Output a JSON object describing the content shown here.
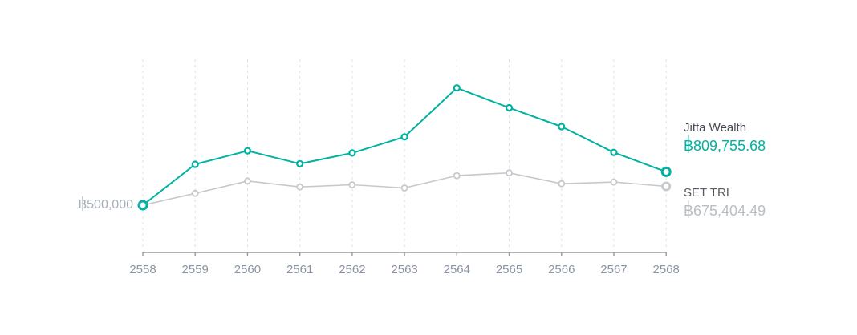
{
  "chart_data": {
    "type": "line",
    "x_labels": [
      "2558",
      "2559",
      "2560",
      "2561",
      "2562",
      "2563",
      "2564",
      "2565",
      "2566",
      "2567",
      "2568"
    ],
    "series": [
      {
        "key": "jitta-wealth",
        "name": "Jitta Wealth",
        "color": "#00b2a1",
        "values": [
          500000,
          880000,
          1005000,
          885000,
          985000,
          1135000,
          1590000,
          1405000,
          1230000,
          990000,
          809755.68
        ],
        "final_value": 809755.68,
        "final_label": "฿809,755.68"
      },
      {
        "key": "set-tri",
        "name": "SET TRI",
        "color": "#c6c9cc",
        "values": [
          500000,
          610000,
          725000,
          670000,
          690000,
          660000,
          775000,
          800000,
          700000,
          715000,
          675404.49
        ],
        "final_value": 675404.49,
        "final_label": "฿675,404.49"
      }
    ],
    "initial_value": 500000,
    "initial_value_label": "฿500,000",
    "title": "",
    "xlabel": "",
    "ylabel": "",
    "grid": "vertical-dashed",
    "legend_position": "right"
  },
  "legend": {
    "jitta": {
      "name": "Jitta Wealth",
      "value": "฿809,755.68"
    },
    "set_tri": {
      "name": "SET TRI",
      "value": "฿675,404.49"
    }
  },
  "y_axis": {
    "start_label": "฿500,000"
  },
  "colors": {
    "accent_teal": "#00b2a1",
    "benchmark_gray": "#c6c9cc",
    "gridline": "#dee0e2",
    "axis_line": "#98999d",
    "tick_label": "#8a94a4",
    "start_label": "#a6adb5",
    "legend_name": "#464b51",
    "legend_value_gray": "#b9bec4"
  }
}
